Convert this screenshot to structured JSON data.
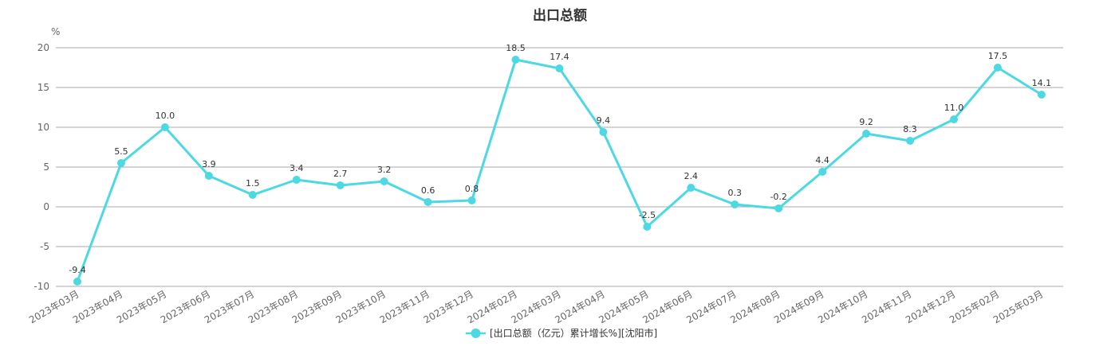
{
  "chart_data": {
    "type": "line",
    "title": "出口总额",
    "ylabel": "%",
    "ylim": [
      -10,
      20
    ],
    "yticks": [
      20,
      15,
      10,
      5,
      0,
      -5,
      -10
    ],
    "grid": true,
    "legend_position": "bottom",
    "categories": [
      "2023年03月",
      "2023年04月",
      "2023年05月",
      "2023年06月",
      "2023年07月",
      "2023年08月",
      "2023年09月",
      "2023年10月",
      "2023年11月",
      "2023年12月",
      "2024年02月",
      "2024年03月",
      "2024年04月",
      "2024年05月",
      "2024年06月",
      "2024年07月",
      "2024年08月",
      "2024年09月",
      "2024年10月",
      "2024年11月",
      "2024年12月",
      "2025年02月",
      "2025年03月"
    ],
    "series": [
      {
        "name": "[出口总额（亿元）累计增长%][沈阳市]",
        "color": "#4dd9e3",
        "values": [
          -9.4,
          5.5,
          10.0,
          3.9,
          1.5,
          3.4,
          2.7,
          3.2,
          0.6,
          0.8,
          18.5,
          17.4,
          9.4,
          -2.5,
          2.4,
          0.3,
          -0.2,
          4.4,
          9.2,
          8.3,
          11.0,
          17.5,
          14.1
        ],
        "labels": [
          "-9.4",
          "5.5",
          "10.0",
          "3.9",
          "1.5",
          "3.4",
          "2.7",
          "3.2",
          "0.6",
          "0.8",
          "18.5",
          "17.4",
          "9.4",
          "-2.5",
          "2.4",
          "0.3",
          "-0.2",
          "4.4",
          "9.2",
          "8.3",
          "11.0",
          "17.5",
          "14.1"
        ]
      }
    ]
  }
}
